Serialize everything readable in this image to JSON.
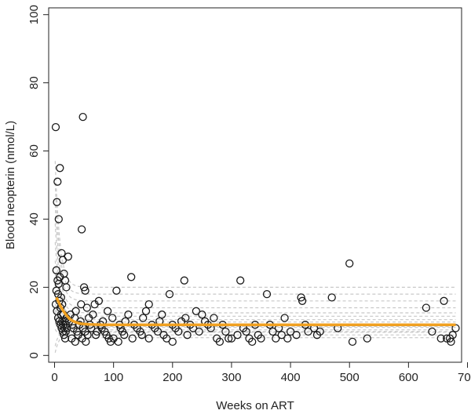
{
  "chart_data": {
    "type": "scatter",
    "xlabel": "Weeks on ART",
    "ylabel": "Blood neopterin (nmol/L)",
    "xlim": [
      -10,
      690
    ],
    "ylim": [
      -2,
      102
    ],
    "x_ticks": [
      0,
      100,
      200,
      300,
      400,
      500,
      600,
      700
    ],
    "y_ticks": [
      0,
      20,
      40,
      60,
      80,
      100
    ],
    "grid": false,
    "legend": "none",
    "colors": {
      "points": "#1a1a1a",
      "fit_line": "#f0a020",
      "individual_curves": "#c8c8c8"
    },
    "series": [
      {
        "role": "observed",
        "points": [
          [
            2,
            67
          ],
          [
            4,
            45
          ],
          [
            5,
            51
          ],
          [
            7,
            40
          ],
          [
            9,
            55
          ],
          [
            12,
            30
          ],
          [
            14,
            28
          ],
          [
            16,
            24
          ],
          [
            18,
            22
          ],
          [
            20,
            20
          ],
          [
            3,
            25
          ],
          [
            5,
            22
          ],
          [
            6,
            18
          ],
          [
            8,
            16
          ],
          [
            10,
            14
          ],
          [
            11,
            12
          ],
          [
            13,
            10
          ],
          [
            15,
            9
          ],
          [
            17,
            8
          ],
          [
            19,
            7
          ],
          [
            2,
            15
          ],
          [
            4,
            13
          ],
          [
            6,
            11
          ],
          [
            8,
            10
          ],
          [
            10,
            9
          ],
          [
            12,
            8
          ],
          [
            14,
            7
          ],
          [
            16,
            6
          ],
          [
            18,
            5
          ],
          [
            20,
            11
          ],
          [
            3,
            19
          ],
          [
            7,
            21
          ],
          [
            9,
            23
          ],
          [
            11,
            17
          ],
          [
            13,
            15
          ],
          [
            15,
            12
          ],
          [
            17,
            10
          ],
          [
            19,
            9
          ],
          [
            21,
            8
          ],
          [
            23,
            29
          ],
          [
            48,
            70
          ],
          [
            46,
            37
          ],
          [
            50,
            20
          ],
          [
            52,
            19
          ],
          [
            45,
            15
          ],
          [
            55,
            14
          ],
          [
            44,
            10
          ],
          [
            48,
            8
          ],
          [
            52,
            7
          ],
          [
            56,
            6
          ],
          [
            42,
            9
          ],
          [
            47,
            5
          ],
          [
            53,
            4
          ],
          [
            58,
            11
          ],
          [
            60,
            9
          ],
          [
            62,
            8
          ],
          [
            65,
            12
          ],
          [
            68,
            15
          ],
          [
            70,
            6
          ],
          [
            72,
            7
          ],
          [
            30,
            9
          ],
          [
            32,
            8
          ],
          [
            34,
            11
          ],
          [
            36,
            13
          ],
          [
            38,
            7
          ],
          [
            40,
            6
          ],
          [
            25,
            10
          ],
          [
            27,
            12
          ],
          [
            29,
            5
          ],
          [
            35,
            4
          ],
          [
            75,
            16
          ],
          [
            78,
            9
          ],
          [
            80,
            8
          ],
          [
            82,
            10
          ],
          [
            85,
            7
          ],
          [
            88,
            6
          ],
          [
            90,
            13
          ],
          [
            92,
            5
          ],
          [
            95,
            4
          ],
          [
            98,
            11
          ],
          [
            105,
            19
          ],
          [
            110,
            9
          ],
          [
            112,
            8
          ],
          [
            115,
            7
          ],
          [
            118,
            6
          ],
          [
            120,
            10
          ],
          [
            125,
            12
          ],
          [
            130,
            23
          ],
          [
            132,
            5
          ],
          [
            135,
            9
          ],
          [
            140,
            8
          ],
          [
            145,
            7
          ],
          [
            148,
            6
          ],
          [
            150,
            11
          ],
          [
            155,
            13
          ],
          [
            160,
            15
          ],
          [
            165,
            9
          ],
          [
            170,
            8
          ],
          [
            175,
            7
          ],
          [
            178,
            10
          ],
          [
            182,
            12
          ],
          [
            185,
            6
          ],
          [
            190,
            5
          ],
          [
            195,
            18
          ],
          [
            200,
            9
          ],
          [
            205,
            8
          ],
          [
            210,
            7
          ],
          [
            215,
            10
          ],
          [
            220,
            22
          ],
          [
            222,
            11
          ],
          [
            225,
            6
          ],
          [
            230,
            9
          ],
          [
            235,
            8
          ],
          [
            240,
            13
          ],
          [
            245,
            7
          ],
          [
            250,
            12
          ],
          [
            255,
            10
          ],
          [
            260,
            9
          ],
          [
            265,
            8
          ],
          [
            270,
            11
          ],
          [
            275,
            5
          ],
          [
            280,
            4
          ],
          [
            285,
            9
          ],
          [
            290,
            7
          ],
          [
            295,
            5
          ],
          [
            300,
            5
          ],
          [
            310,
            6
          ],
          [
            315,
            22
          ],
          [
            320,
            8
          ],
          [
            325,
            7
          ],
          [
            330,
            5
          ],
          [
            335,
            4
          ],
          [
            340,
            9
          ],
          [
            345,
            6
          ],
          [
            350,
            5
          ],
          [
            360,
            18
          ],
          [
            365,
            9
          ],
          [
            370,
            7
          ],
          [
            375,
            5
          ],
          [
            380,
            8
          ],
          [
            385,
            6
          ],
          [
            390,
            11
          ],
          [
            395,
            5
          ],
          [
            400,
            7
          ],
          [
            410,
            6
          ],
          [
            418,
            17
          ],
          [
            420,
            16
          ],
          [
            425,
            9
          ],
          [
            430,
            7
          ],
          [
            440,
            8
          ],
          [
            445,
            6
          ],
          [
            450,
            7
          ],
          [
            470,
            17
          ],
          [
            480,
            8
          ],
          [
            500,
            27
          ],
          [
            505,
            4
          ],
          [
            530,
            5
          ],
          [
            630,
            14
          ],
          [
            660,
            16
          ],
          [
            665,
            5
          ],
          [
            670,
            5
          ],
          [
            675,
            6
          ],
          [
            680,
            8
          ],
          [
            672,
            4
          ],
          [
            655,
            5
          ],
          [
            640,
            7
          ],
          [
            100,
            5
          ],
          [
            108,
            4
          ],
          [
            160,
            5
          ],
          [
            200,
            4
          ]
        ]
      },
      {
        "role": "population-fit",
        "points": [
          [
            3,
            17
          ],
          [
            6,
            16
          ],
          [
            10,
            14.5
          ],
          [
            15,
            13
          ],
          [
            20,
            11.8
          ],
          [
            25,
            10.8
          ],
          [
            30,
            10.2
          ],
          [
            35,
            9.8
          ],
          [
            40,
            9.5
          ],
          [
            45,
            9.3
          ],
          [
            50,
            9.2
          ],
          [
            60,
            9.1
          ],
          [
            80,
            9.0
          ],
          [
            100,
            9.0
          ],
          [
            200,
            9.0
          ],
          [
            300,
            9.0
          ],
          [
            400,
            9.0
          ],
          [
            500,
            9.0
          ],
          [
            600,
            9.0
          ],
          [
            680,
            9.0
          ]
        ]
      }
    ],
    "individual_curves": [
      {
        "start": 62,
        "plateau": 20
      },
      {
        "start": 55,
        "plateau": 18
      },
      {
        "start": 48,
        "plateau": 16
      },
      {
        "start": 42,
        "plateau": 14
      },
      {
        "start": 36,
        "plateau": 12.5
      },
      {
        "start": 30,
        "plateau": 11.5
      },
      {
        "start": 26,
        "plateau": 10.5
      },
      {
        "start": 22,
        "plateau": 9.8
      },
      {
        "start": 19,
        "plateau": 9
      },
      {
        "start": 16,
        "plateau": 8.2
      },
      {
        "start": 14,
        "plateau": 7.5
      },
      {
        "start": 12,
        "plateau": 6.8
      },
      {
        "start": 10,
        "plateau": 6
      },
      {
        "start": 8,
        "plateau": 5.2
      },
      {
        "start": 0,
        "plateau": 7
      },
      {
        "start": 2,
        "plateau": 8.5
      }
    ]
  }
}
